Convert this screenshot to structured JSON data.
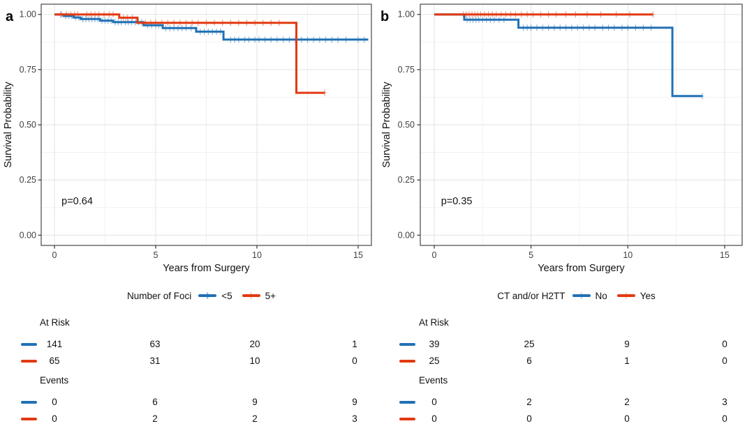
{
  "colors": {
    "blue": "#2171b5",
    "red": "#e23a12",
    "grid_major": "#e3e3e3",
    "grid_minor": "#f1f1f1",
    "panel_border": "#474747",
    "tick_mark": "#333333",
    "tick_label": "#404040",
    "text": "#111111",
    "background": "#ffffff"
  },
  "chart_data": [
    {
      "type": "line",
      "subtype": "kaplan-meier-step",
      "panel_label": "a",
      "xlabel": "Years from Surgery",
      "ylabel": "Survival Probability",
      "p_value": "p=0.64",
      "xlim": [
        -0.65,
        15.65
      ],
      "ylim": [
        0,
        1.05
      ],
      "xticks": [
        0,
        5,
        10,
        15
      ],
      "xtick_labels": [
        "0",
        "5",
        "10",
        "15"
      ],
      "x_minor_ticks": [
        2.5,
        7.5,
        12.5
      ],
      "yticks": [
        0,
        0.25,
        0.5,
        0.75,
        1
      ],
      "ytick_labels": [
        "0.00",
        "0.25",
        "0.50",
        "0.75",
        "1.00"
      ],
      "y_minor_ticks": [
        0.125,
        0.375,
        0.625,
        0.875
      ],
      "grid": true,
      "legend": {
        "title": "Number of Foci",
        "position": "bottom",
        "entries": [
          {
            "label": "<5",
            "color_key": "blue"
          },
          {
            "label": "5+",
            "color_key": "red"
          }
        ]
      },
      "series": [
        {
          "name": "<5",
          "color_key": "blue",
          "steps": [
            [
              0,
              1
            ],
            [
              0.45,
              1
            ],
            [
              0.45,
              0.993
            ],
            [
              0.95,
              0.993
            ],
            [
              0.95,
              0.986
            ],
            [
              1.3,
              0.986
            ],
            [
              1.3,
              0.979
            ],
            [
              2.25,
              0.979
            ],
            [
              2.25,
              0.972
            ],
            [
              2.9,
              0.972
            ],
            [
              2.9,
              0.965
            ],
            [
              4.4,
              0.965
            ],
            [
              4.4,
              0.951
            ],
            [
              5.35,
              0.951
            ],
            [
              5.35,
              0.938
            ],
            [
              7.0,
              0.938
            ],
            [
              7.0,
              0.922
            ],
            [
              8.35,
              0.922
            ],
            [
              8.35,
              0.886
            ],
            [
              15.5,
              0.886
            ]
          ],
          "censor_x": [
            0.3,
            0.55,
            0.7,
            0.85,
            1.05,
            1.2,
            1.4,
            1.55,
            1.7,
            1.85,
            2.0,
            2.15,
            2.35,
            2.5,
            2.65,
            2.8,
            3.0,
            3.15,
            3.3,
            3.5,
            3.65,
            3.8,
            4.0,
            4.15,
            4.3,
            4.6,
            4.8,
            5.0,
            5.15,
            5.5,
            5.7,
            5.9,
            6.1,
            6.3,
            6.5,
            6.75,
            7.2,
            7.4,
            7.6,
            7.8,
            8.0,
            8.2,
            8.7,
            8.9,
            9.1,
            9.4,
            9.6,
            9.9,
            10.1,
            10.4,
            10.7,
            11.0,
            11.3,
            11.6,
            11.9,
            12.2,
            12.5,
            12.8,
            13.1,
            13.4,
            13.7,
            14.0,
            14.4,
            15.0,
            15.3
          ]
        },
        {
          "name": "5+",
          "color_key": "red",
          "steps": [
            [
              0,
              1
            ],
            [
              3.2,
              1
            ],
            [
              3.2,
              0.985
            ],
            [
              4.1,
              0.985
            ],
            [
              4.1,
              0.962
            ],
            [
              11.95,
              0.962
            ],
            [
              11.95,
              0.645
            ],
            [
              13.35,
              0.645
            ]
          ],
          "censor_x": [
            0.35,
            0.6,
            0.8,
            1.0,
            1.15,
            1.6,
            1.8,
            2.0,
            2.2,
            2.45,
            2.7,
            2.9,
            3.4,
            3.6,
            3.85,
            4.5,
            4.75,
            5.0,
            5.3,
            5.6,
            5.9,
            6.2,
            6.5,
            6.8,
            7.1,
            7.5,
            7.9,
            8.3,
            8.7,
            9.1,
            9.5,
            9.9,
            10.3,
            10.7,
            11.1,
            13.35
          ]
        }
      ],
      "risk_table": {
        "at_risk_label": "At Risk",
        "events_label": "Events",
        "times": [
          0,
          5,
          10,
          15
        ],
        "at_risk": [
          [
            "141",
            "63",
            "20",
            "1"
          ],
          [
            "65",
            "31",
            "10",
            "0"
          ]
        ],
        "events": [
          [
            "0",
            "6",
            "9",
            "9"
          ],
          [
            "0",
            "2",
            "2",
            "3"
          ]
        ]
      }
    },
    {
      "type": "line",
      "subtype": "kaplan-meier-step",
      "panel_label": "b",
      "xlabel": "Years from Surgery",
      "ylabel": "Survival Probability",
      "p_value": "p=0.35",
      "xlim": [
        -0.65,
        15.9
      ],
      "ylim": [
        0,
        1.05
      ],
      "xticks": [
        0,
        5,
        10,
        15
      ],
      "xtick_labels": [
        "0",
        "5",
        "10",
        "15"
      ],
      "x_minor_ticks": [
        2.5,
        7.5,
        12.5
      ],
      "yticks": [
        0,
        0.25,
        0.5,
        0.75,
        1
      ],
      "ytick_labels": [
        "0.00",
        "0.25",
        "0.50",
        "0.75",
        "1.00"
      ],
      "y_minor_ticks": [
        0.125,
        0.375,
        0.625,
        0.875
      ],
      "grid": true,
      "legend": {
        "title": "CT and/or H2TT",
        "position": "bottom",
        "entries": [
          {
            "label": "No",
            "color_key": "blue"
          },
          {
            "label": "Yes",
            "color_key": "red"
          }
        ]
      },
      "series": [
        {
          "name": "No",
          "color_key": "blue",
          "steps": [
            [
              0,
              1
            ],
            [
              1.55,
              1
            ],
            [
              1.55,
              0.976
            ],
            [
              4.35,
              0.976
            ],
            [
              4.35,
              0.94
            ],
            [
              12.3,
              0.94
            ],
            [
              12.3,
              0.63
            ],
            [
              13.85,
              0.63
            ]
          ],
          "censor_x": [
            1.7,
            1.85,
            2.0,
            2.15,
            2.3,
            2.5,
            2.7,
            2.9,
            3.1,
            3.35,
            3.6,
            4.6,
            4.8,
            5.0,
            5.3,
            5.6,
            5.9,
            6.2,
            6.5,
            6.8,
            7.1,
            7.4,
            7.7,
            8.0,
            8.3,
            8.7,
            9.0,
            9.3,
            9.7,
            10.0,
            10.4,
            10.8,
            11.2,
            13.85
          ]
        },
        {
          "name": "Yes",
          "color_key": "red",
          "steps": [
            [
              0,
              1
            ],
            [
              11.3,
              1
            ]
          ],
          "censor_x": [
            1.5,
            1.65,
            1.8,
            1.95,
            2.1,
            2.25,
            2.4,
            2.6,
            2.8,
            3.0,
            3.2,
            3.45,
            3.7,
            3.95,
            4.2,
            4.5,
            4.8,
            5.1,
            5.5,
            5.9,
            6.3,
            6.8,
            7.3,
            7.9,
            8.6,
            9.4,
            10.1,
            11.3
          ]
        }
      ],
      "risk_table": {
        "at_risk_label": "At Risk",
        "events_label": "Events",
        "times": [
          0,
          5,
          10,
          15
        ],
        "at_risk": [
          [
            "39",
            "25",
            "9",
            "0"
          ],
          [
            "25",
            "6",
            "1",
            "0"
          ]
        ],
        "events": [
          [
            "0",
            "2",
            "2",
            "3"
          ],
          [
            "0",
            "0",
            "0",
            "0"
          ]
        ]
      }
    }
  ]
}
